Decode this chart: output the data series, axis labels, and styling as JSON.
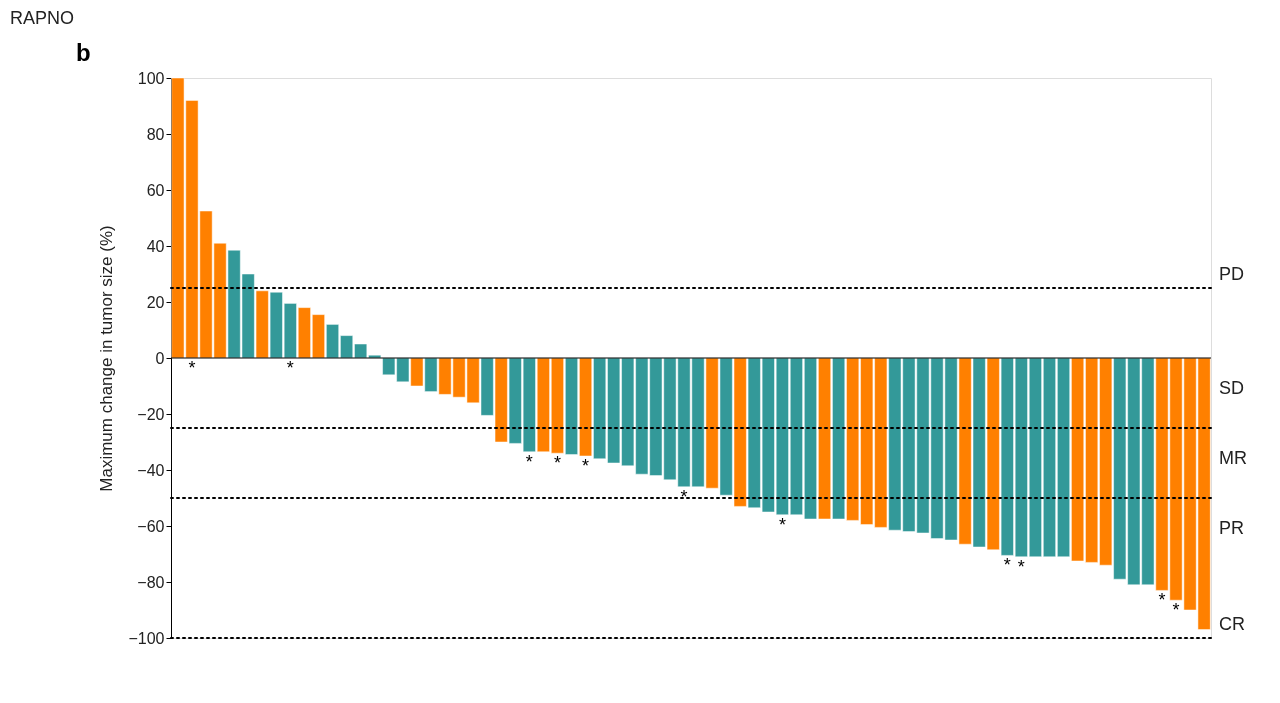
{
  "chart_data": {
    "type": "bar",
    "title": "RAPNO",
    "ylabel": "Maximum change in tumor size (%)",
    "annotations": [
      "b"
    ],
    "categories": [
      null,
      null,
      null,
      null,
      null,
      null,
      null,
      null,
      null,
      null,
      null,
      null,
      null,
      null,
      null,
      null,
      null,
      null,
      null,
      null,
      null,
      null,
      null,
      null,
      null,
      null,
      null,
      null,
      null,
      null,
      null,
      null,
      null,
      null,
      null,
      null,
      null,
      null,
      null,
      null,
      null,
      null,
      null,
      null,
      null,
      null,
      null,
      null,
      null,
      null,
      null,
      null,
      null,
      null,
      null,
      null,
      null,
      null,
      null,
      null,
      null,
      null,
      null,
      null,
      null,
      null,
      null,
      null,
      null,
      null,
      null,
      null,
      null,
      null
    ],
    "values": [
      100,
      92,
      52.5,
      41,
      38.5,
      30,
      24,
      23.5,
      19.5,
      18,
      15.5,
      12,
      8,
      5,
      1,
      -6,
      -8.5,
      -10,
      -12,
      -13,
      -14,
      -16,
      -20.5,
      -30,
      -30.5,
      -33.5,
      -33.5,
      -34,
      -34.5,
      -35,
      -36,
      -37.5,
      -38.5,
      -41.5,
      -42,
      -43.5,
      -46,
      -46,
      -46.5,
      -49,
      -53,
      -53.5,
      -55,
      -56,
      -56,
      -57.5,
      -57.5,
      -57.5,
      -58,
      -59.5,
      -60.5,
      -61.5,
      -62,
      -62.5,
      -64.5,
      -65,
      -66.5,
      -67.5,
      -68.5,
      -70.5,
      -71,
      -71,
      -71,
      -71,
      -72.5,
      -73,
      -74,
      -79,
      -81,
      -81,
      -83,
      -86.5,
      -90,
      -97
    ],
    "colors": [
      "#ff8000",
      "#ff8000",
      "#ff8000",
      "#ff8000",
      "#339999",
      "#339999",
      "#ff8000",
      "#339999",
      "#339999",
      "#ff8000",
      "#ff8000",
      "#339999",
      "#339999",
      "#339999",
      "#339999",
      "#339999",
      "#339999",
      "#ff8000",
      "#339999",
      "#ff8000",
      "#ff8000",
      "#ff8000",
      "#339999",
      "#ff8000",
      "#339999",
      "#339999",
      "#ff8000",
      "#ff8000",
      "#339999",
      "#ff8000",
      "#339999",
      "#339999",
      "#339999",
      "#339999",
      "#339999",
      "#339999",
      "#339999",
      "#339999",
      "#ff8000",
      "#339999",
      "#ff8000",
      "#339999",
      "#339999",
      "#339999",
      "#339999",
      "#339999",
      "#ff8000",
      "#339999",
      "#ff8000",
      "#ff8000",
      "#ff8000",
      "#339999",
      "#339999",
      "#339999",
      "#339999",
      "#339999",
      "#ff8000",
      "#339999",
      "#ff8000",
      "#339999",
      "#339999",
      "#339999",
      "#339999",
      "#339999",
      "#ff8000",
      "#ff8000",
      "#ff8000",
      "#339999",
      "#339999",
      "#339999",
      "#ff8000",
      "#ff8000",
      "#ff8000",
      "#ff8000"
    ],
    "value_labels": [
      null,
      "*",
      null,
      null,
      null,
      null,
      null,
      null,
      "*",
      null,
      null,
      null,
      null,
      null,
      null,
      null,
      null,
      null,
      null,
      null,
      null,
      null,
      null,
      null,
      null,
      "*",
      null,
      "*",
      null,
      "*",
      null,
      null,
      null,
      null,
      null,
      null,
      "*",
      null,
      null,
      null,
      null,
      null,
      null,
      "*",
      null,
      null,
      null,
      null,
      null,
      null,
      null,
      null,
      null,
      null,
      null,
      null,
      null,
      null,
      null,
      "*",
      "*",
      null,
      null,
      null,
      null,
      null,
      null,
      null,
      null,
      null,
      "*",
      "*",
      null,
      null
    ],
    "ylim": [
      -100,
      100
    ],
    "yticks": [
      -100,
      -80,
      -60,
      -40,
      -20,
      0,
      20,
      40,
      60,
      80,
      100
    ],
    "ref_lines": [
      {
        "axis": "y",
        "value": 25,
        "line_style": "dotted",
        "label": "PD"
      },
      {
        "axis": "y",
        "value": -25,
        "line_style": "dotted",
        "label": "MR"
      },
      {
        "axis": "y",
        "value": -50,
        "line_style": "dotted",
        "label": "PR"
      },
      {
        "axis": "y",
        "value": -100,
        "line_style": "dotted",
        "label": "CR"
      },
      {
        "axis": "y",
        "value": 0,
        "line_style": "solid",
        "label": "SD"
      }
    ],
    "tick_labels": "y",
    "grid": false
  }
}
